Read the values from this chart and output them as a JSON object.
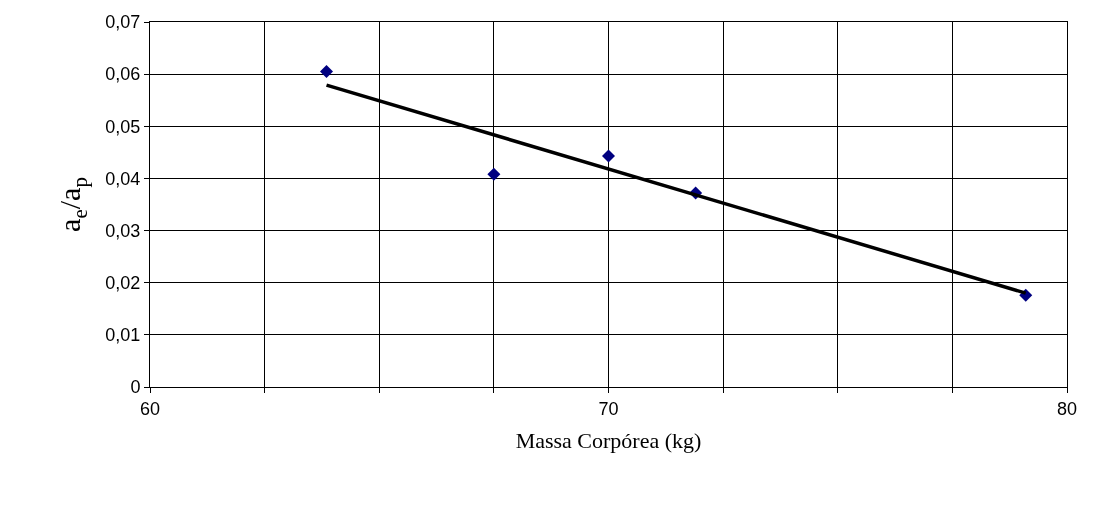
{
  "chart_data": {
    "type": "scatter",
    "xlabel": "Massa Corpórea (kg)",
    "ylabel": "a$_{e}$/a$_{p}$",
    "series": [
      {
        "color": "#000080",
        "marker": "diamond",
        "x": [
          63.85,
          67.5,
          70.0,
          71.9,
          79.1
        ],
        "values": [
          0.0605,
          0.0408,
          0.0443,
          0.0372,
          0.0176
        ]
      },
      {
        "type": "line",
        "color": "#000000",
        "marker": "none",
        "x": [
          63.85,
          79.1
        ],
        "values": [
          0.0579,
          0.018
        ]
      }
    ],
    "xlim": [
      60,
      80
    ],
    "xticks": [
      60,
      {
        "value": 62.5,
        "label": null
      },
      {
        "value": 65,
        "label": null
      },
      {
        "value": 67.5,
        "label": null
      },
      70,
      {
        "value": 72.5,
        "label": null
      },
      {
        "value": 75,
        "label": null
      },
      {
        "value": 77.5,
        "label": null
      },
      80
    ],
    "ylim": [
      0,
      0.07
    ],
    "yticks": [
      {
        "value": 0,
        "label": "0"
      },
      {
        "value": 0.01,
        "label": "0,01"
      },
      {
        "value": 0.02,
        "label": "0,02"
      },
      {
        "value": 0.03,
        "label": "0,03"
      },
      {
        "value": 0.04,
        "label": "0,04"
      },
      {
        "value": 0.05,
        "label": "0,05"
      },
      {
        "value": 0.06,
        "label": "0,06"
      },
      {
        "value": 0.07,
        "label": "0,07"
      }
    ],
    "grid": true
  }
}
